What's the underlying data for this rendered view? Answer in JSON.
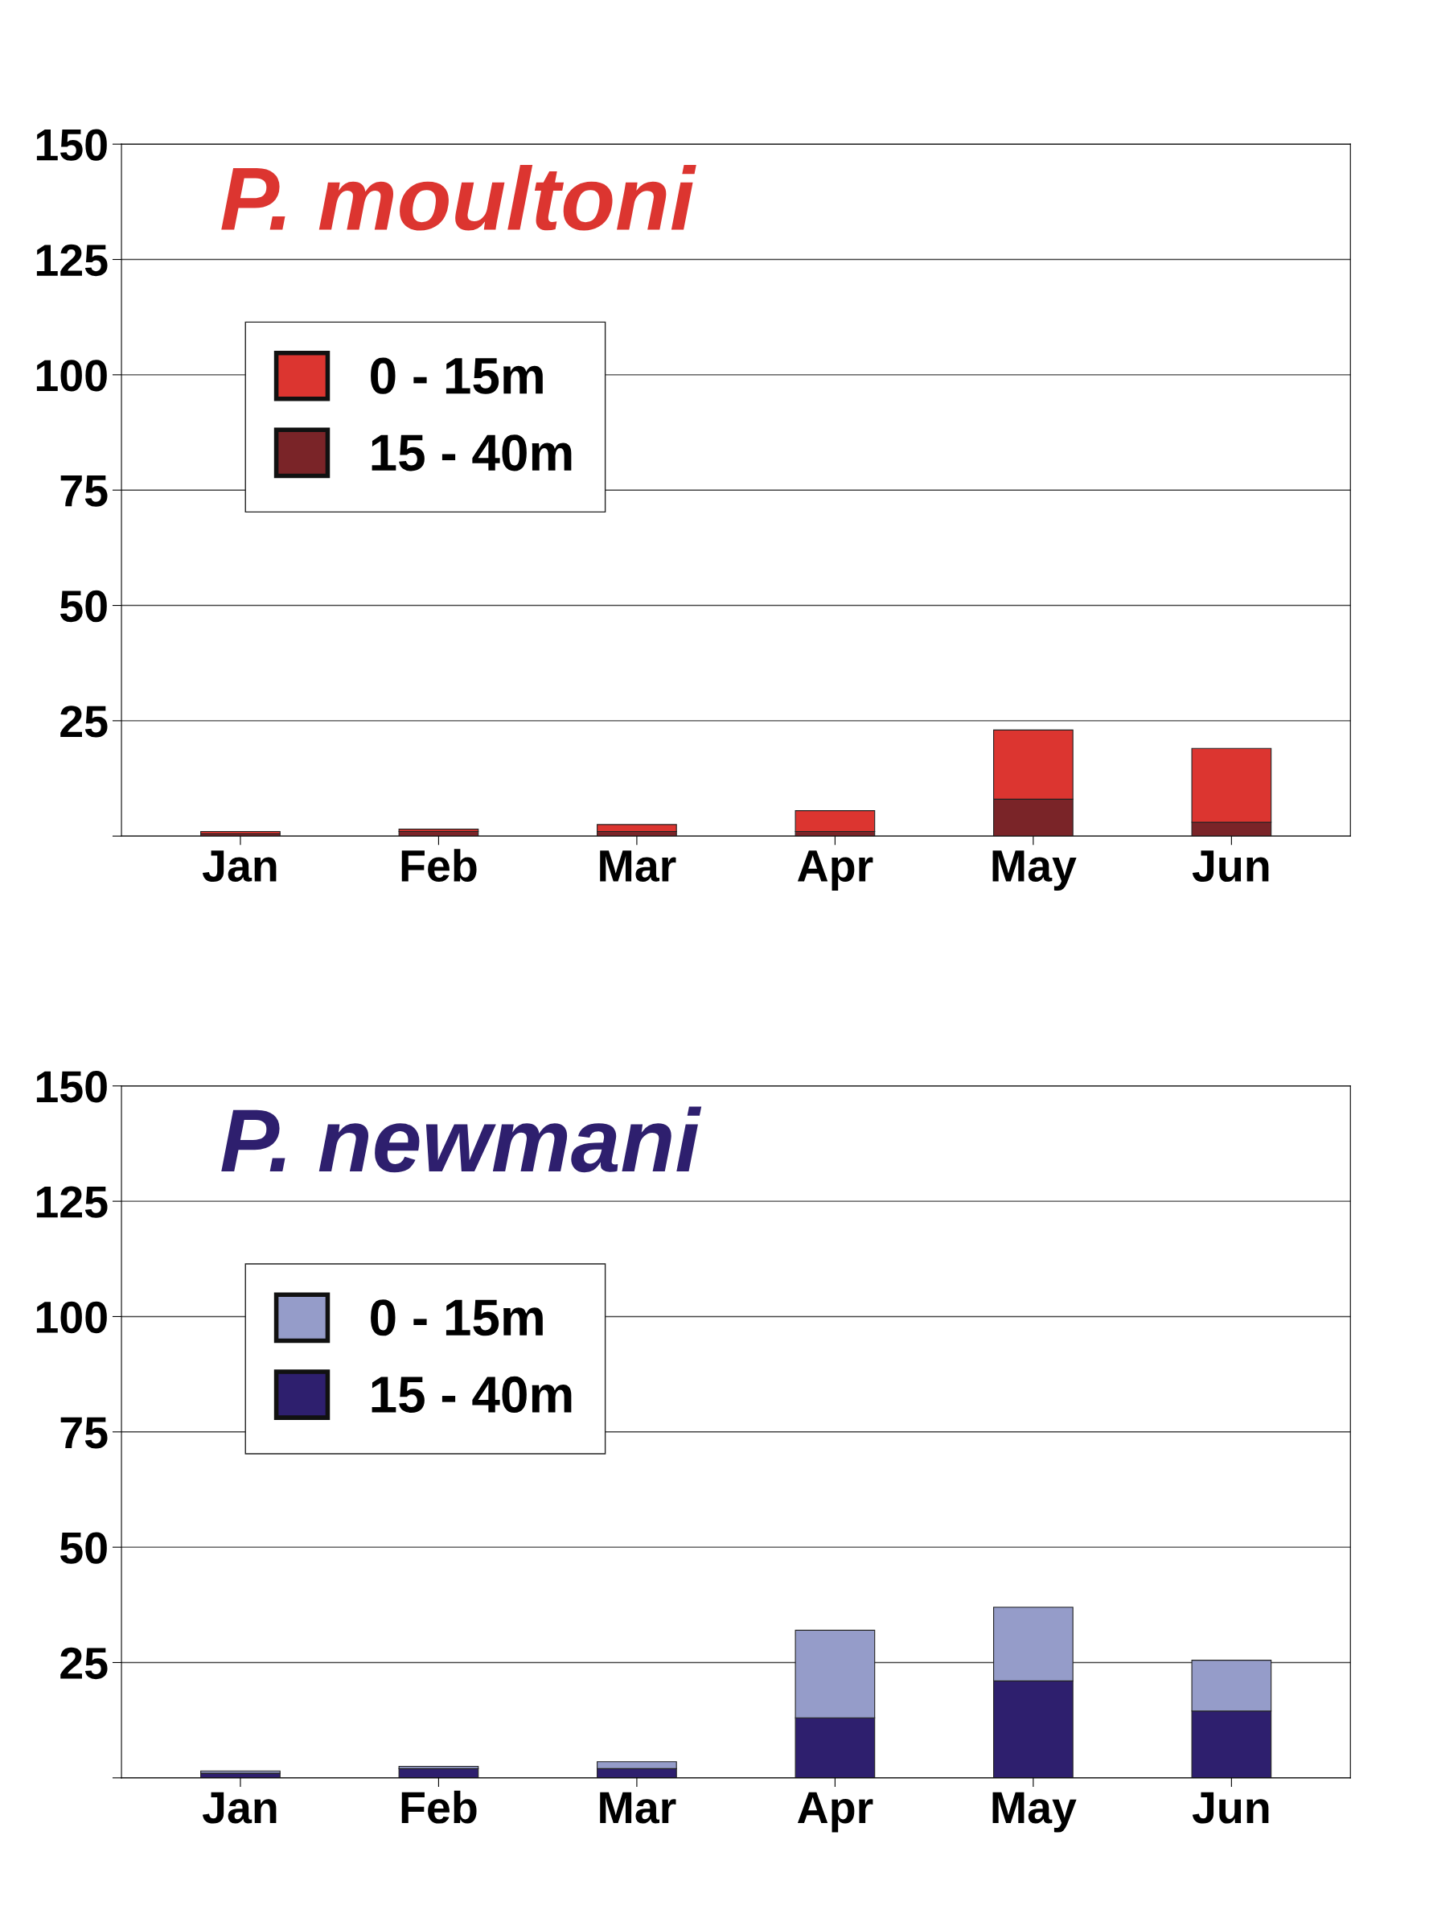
{
  "chart_data": [
    {
      "type": "bar",
      "title": "P. moultoni",
      "categories": [
        "Jan",
        "Feb",
        "Mar",
        "Apr",
        "May",
        "Jun"
      ],
      "stacked": true,
      "legend": "top left",
      "grid": "y",
      "ylim": [
        0,
        150
      ],
      "yticks": [
        {
          "value": 0,
          "label": null
        },
        25,
        50,
        75,
        100,
        125,
        150
      ],
      "series": [
        {
          "name": "15 - 40m",
          "color": "#7a2428",
          "values": [
            0.5,
            1,
            1,
            1,
            8,
            3
          ]
        },
        {
          "name": "0 - 15m",
          "color": "#dc3530",
          "values": [
            0.5,
            0.5,
            1.5,
            4.5,
            15,
            16
          ]
        }
      ]
    },
    {
      "type": "bar",
      "title": "P. newmani",
      "categories": [
        "Jan",
        "Feb",
        "Mar",
        "Apr",
        "May",
        "Jun"
      ],
      "stacked": true,
      "legend": "top left",
      "grid": "y",
      "ylim": [
        0,
        150
      ],
      "yticks": [
        {
          "value": 0,
          "label": null
        },
        25,
        50,
        75,
        100,
        125,
        150
      ],
      "series": [
        {
          "name": "15 - 40m",
          "color": "#2e1f6e",
          "values": [
            1,
            2,
            2,
            13,
            21,
            14.5
          ]
        },
        {
          "name": "0 - 15m",
          "color": "#959cc9",
          "values": [
            0.5,
            0.5,
            1.5,
            19,
            16,
            11
          ]
        }
      ]
    }
  ]
}
